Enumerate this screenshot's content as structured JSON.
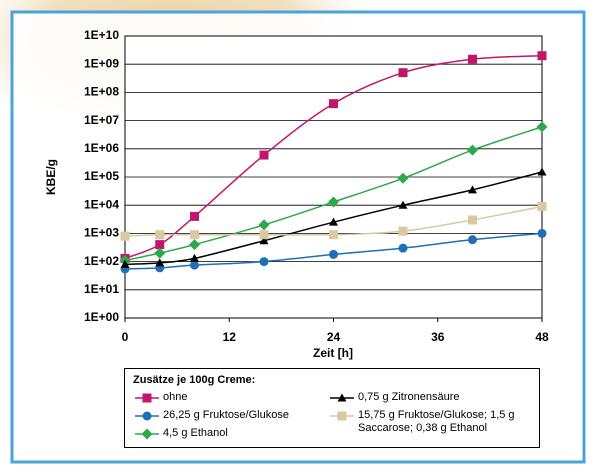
{
  "chart_data": {
    "type": "line",
    "y_label": "KBE/g",
    "x_label": "Zeit [h]",
    "legend_title": "Zusätze je 100g Creme:",
    "x": [
      0,
      4,
      8,
      16,
      24,
      32,
      40,
      48
    ],
    "xlim": [
      0,
      48
    ],
    "xticks": [
      0,
      12,
      24,
      36,
      48
    ],
    "ylim": [
      1,
      10000000000
    ],
    "log_y": true,
    "grid": "y",
    "yticks": [
      {
        "value": 1,
        "label": "1E+00"
      },
      {
        "value": 10,
        "label": "1E+01"
      },
      {
        "value": 100,
        "label": "1E+02"
      },
      {
        "value": 1000,
        "label": "1E+03"
      },
      {
        "value": 10000,
        "label": "1E+04"
      },
      {
        "value": 100000,
        "label": "1E+05"
      },
      {
        "value": 1000000,
        "label": "1E+06"
      },
      {
        "value": 10000000,
        "label": "1E+07"
      },
      {
        "value": 100000000,
        "label": "1E+08"
      },
      {
        "value": 1000000000,
        "label": "1E+09"
      },
      {
        "value": 10000000000,
        "label": "1E+10"
      }
    ],
    "series": [
      {
        "name": "ohne",
        "color": "#c0166c",
        "marker": "square",
        "values": [
          130,
          400,
          4000,
          600000,
          40000000,
          500000000,
          1500000000,
          2000000000
        ]
      },
      {
        "name": "26,25 g Fruktose/Glukose",
        "color": "#1f6fb5",
        "marker": "circle",
        "values": [
          55,
          60,
          75,
          100,
          180,
          300,
          600,
          1000
        ]
      },
      {
        "name": "4,5 g Ethanol",
        "color": "#2da84a",
        "marker": "diamond",
        "values": [
          110,
          200,
          400,
          2000,
          13000,
          90000,
          900000,
          6000000
        ]
      },
      {
        "name": "0,75 g Zitronensäure",
        "color": "#000000",
        "marker": "triangle",
        "values": [
          80,
          90,
          130,
          550,
          2500,
          10000,
          35000,
          150000
        ]
      },
      {
        "name": "15,75 g Fruktose/Glukose; 1,5 g Saccarose; 0,38 g Ethanol",
        "color": "#d9c9a0",
        "marker": "square",
        "values": [
          800,
          900,
          900,
          900,
          900,
          1200,
          3000,
          9000
        ]
      }
    ]
  }
}
